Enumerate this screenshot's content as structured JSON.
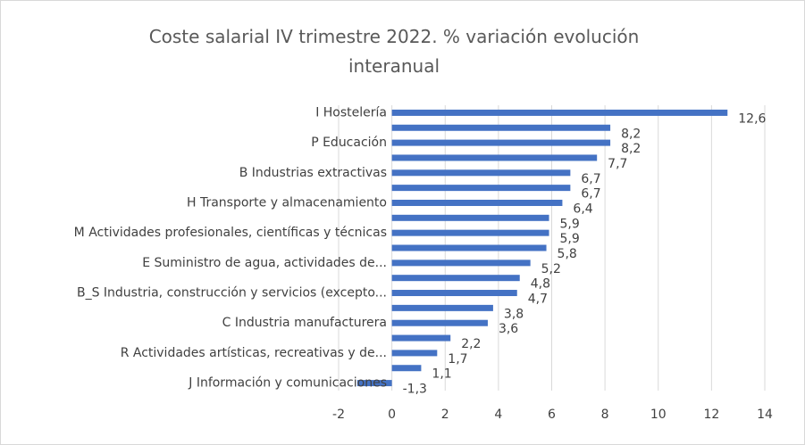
{
  "chart_data": {
    "type": "bar",
    "orientation": "horizontal",
    "title": "Coste salarial IV trimestre 2022. % variación evolución interanual",
    "categories": [
      "I Hostelería",
      null,
      "P Educación",
      null,
      "B Industrias extractivas",
      null,
      "H Transporte y almacenamiento",
      null,
      "M Actividades profesionales, científicas y técnicas",
      null,
      "E Suministro de agua, actividades de...",
      null,
      "B_S Industria, construcción y servicios (excepto...",
      null,
      "C Industria manufacturera",
      null,
      "R Actividades artísticas, recreativas y de...",
      null,
      "J Información y comunicaciones"
    ],
    "values": [
      12.6,
      8.2,
      8.2,
      7.7,
      6.7,
      6.7,
      6.4,
      5.9,
      5.9,
      5.8,
      5.2,
      4.8,
      4.7,
      3.8,
      3.6,
      2.2,
      1.7,
      1.1,
      -1.3
    ],
    "value_labels": [
      "12,6",
      "8,2",
      "8,2",
      "7,7",
      "6,7",
      "6,7",
      "6,4",
      "5,9",
      "5,9",
      "5,8",
      "5,2",
      "4,8",
      "4,7",
      "3,8",
      "3,6",
      "2,2",
      "1,7",
      "1,1",
      "-1,3"
    ],
    "color": "#4472c4",
    "xlim": [
      -2,
      14
    ],
    "xticks": [
      -2,
      0,
      2,
      4,
      6,
      8,
      10,
      12,
      14
    ],
    "grid": true
  }
}
